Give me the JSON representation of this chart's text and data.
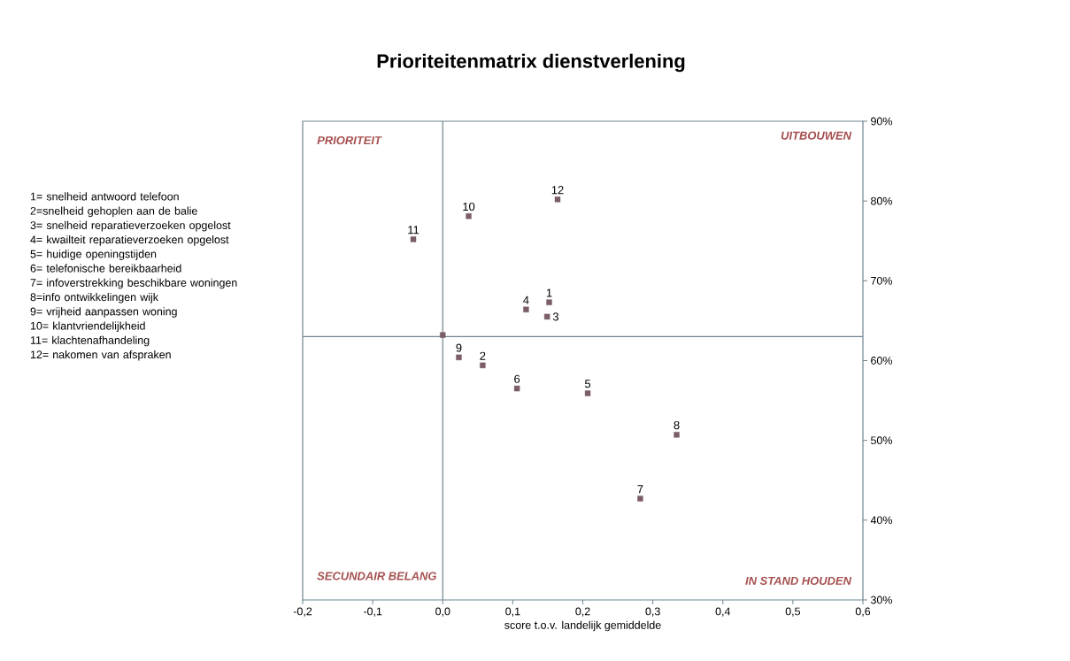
{
  "chart_data": {
    "type": "scatter",
    "title": "Prioriteitenmatrix dienstverlening",
    "xlabel": "score t.o.v. landelijk gemiddelde",
    "series": [
      {
        "color": "#7b5d68",
        "x": [
          0.152,
          0.057,
          0.149,
          0.119,
          0.207,
          0.106,
          0.282,
          0.334,
          0.023,
          0.037,
          -0.042,
          0.164,
          0.0
        ],
        "values": [
          67.3,
          59.4,
          65.5,
          66.4,
          55.9,
          56.5,
          42.7,
          50.7,
          60.4,
          78.1,
          75.2,
          80.2,
          63.2
        ]
      }
    ],
    "marker": "square",
    "xlim": [
      -0.2,
      0.6
    ],
    "ylim": [
      30,
      90
    ],
    "xticks": [
      {
        "value": -0.2,
        "label": "-0,2"
      },
      {
        "value": -0.1,
        "label": "-0,1"
      },
      {
        "value": 0.0,
        "label": "0,0"
      },
      {
        "value": 0.1,
        "label": "0,1"
      },
      {
        "value": 0.2,
        "label": "0,2"
      },
      {
        "value": 0.3,
        "label": "0,3"
      },
      {
        "value": 0.4,
        "label": "0,4"
      },
      {
        "value": 0.5,
        "label": "0,5"
      },
      {
        "value": 0.6,
        "label": "0,6"
      }
    ],
    "yticks": [
      {
        "value": 30,
        "label": "30%"
      },
      {
        "value": 40,
        "label": "40%"
      },
      {
        "value": 50,
        "label": "50%"
      },
      {
        "value": 60,
        "label": "60%"
      },
      {
        "value": 70,
        "label": "70%"
      },
      {
        "value": 80,
        "label": "80%"
      },
      {
        "value": 90,
        "label": "90%"
      }
    ],
    "ref_lines": [
      {
        "axis": "x",
        "value": 0,
        "color": "#6f8590"
      },
      {
        "axis": "y",
        "value": 63,
        "color": "#6f8590"
      }
    ],
    "annotations": [
      "PRIORITEIT",
      "UITBOUWEN",
      "SECUNDAIR BELANG",
      "IN STAND HOUDEN",
      "1= snelheid antwoord telefoon",
      "2=snelheid gehoplen aan de balie",
      "3= snelheid reparatieverzoeken opgelost",
      "4= kwailteit reparatieverzoeken opgelost",
      "5= huidige openingstijden",
      "6= telefonische bereikbaarheid",
      "7= infoverstrekking beschikbare woningen",
      "8=info ontwikkelingen wijk",
      "9= vrijheid aanpassen woning",
      "10= klantvriendelijkheid",
      "11= klachtenafhandeling",
      "12= nakomen van afspraken",
      {
        "text": "1",
        "x": 0.152,
        "y": 67.3
      },
      {
        "text": "2",
        "x": 0.057,
        "y": 59.4
      },
      {
        "text": "3",
        "x": 0.149,
        "y": 65.5
      },
      {
        "text": "4",
        "x": 0.119,
        "y": 66.4
      },
      {
        "text": "5",
        "x": 0.207,
        "y": 55.9
      },
      {
        "text": "6",
        "x": 0.106,
        "y": 56.5
      },
      {
        "text": "7",
        "x": 0.282,
        "y": 42.7
      },
      {
        "text": "8",
        "x": 0.334,
        "y": 50.7
      },
      {
        "text": "9",
        "x": 0.023,
        "y": 60.4
      },
      {
        "text": "10",
        "x": 0.037,
        "y": 78.1
      },
      {
        "text": "11",
        "x": -0.042,
        "y": 75.2
      },
      {
        "text": "12",
        "x": 0.164,
        "y": 80.2
      }
    ]
  }
}
